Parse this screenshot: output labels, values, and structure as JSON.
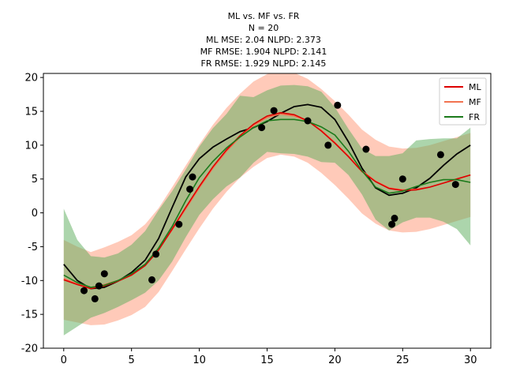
{
  "chart_data": {
    "type": "line",
    "title_lines": [
      "ML vs. MF vs. FR",
      "N = 20",
      "ML  MSE: 2.04  NLPD: 2.373",
      "MF   RMSE: 1.904 NLPD: 2.141",
      "FR  RMSE: 1.929 NLPD: 2.145"
    ],
    "xlabel": "",
    "ylabel": "",
    "xlim": [
      -1.5,
      31.5
    ],
    "ylim": [
      -20,
      20.6
    ],
    "x_ticks": [
      0,
      5,
      10,
      15,
      20,
      25,
      30
    ],
    "y_ticks": [
      -20,
      -15,
      -10,
      -5,
      0,
      5,
      10,
      15,
      20
    ],
    "grid": false,
    "legend_position": "top-right",
    "colors": {
      "ml": "#dd0000",
      "mf": "#f27350",
      "fr": "#1b7a1b",
      "truth": "#000000",
      "ml_band": "#ff9f80",
      "fr_band": "#5aab5a",
      "points": "#000000"
    },
    "legend": [
      {
        "label": "ML",
        "color": "#dd0000"
      },
      {
        "label": "MF",
        "color": "#f27350"
      },
      {
        "label": "FR",
        "color": "#1b7a1b"
      }
    ],
    "observations": {
      "x": [
        1.5,
        2.3,
        2.6,
        3.0,
        6.5,
        6.8,
        8.5,
        9.3,
        9.5,
        14.6,
        15.5,
        18.0,
        19.5,
        20.2,
        22.3,
        24.2,
        24.4,
        25.0,
        27.8,
        28.9
      ],
      "y": [
        -11.5,
        -12.7,
        -10.8,
        -9.0,
        -9.9,
        -6.1,
        -1.7,
        3.5,
        5.3,
        12.6,
        15.1,
        13.6,
        10.0,
        15.9,
        9.4,
        -1.7,
        -0.8,
        5.0,
        8.6,
        4.2
      ]
    },
    "truth": {
      "x": [
        0,
        1,
        2,
        3,
        4,
        5,
        6,
        7,
        8,
        9,
        10,
        11,
        12,
        13,
        14,
        15,
        16,
        17,
        18,
        19,
        20,
        21,
        22,
        23,
        24,
        25,
        26,
        27,
        28,
        29,
        30
      ],
      "y": [
        -7.6,
        -10.0,
        -11.2,
        -11.0,
        -10.1,
        -8.8,
        -7.0,
        -3.8,
        0.8,
        5.3,
        8.0,
        9.7,
        10.9,
        12.0,
        12.6,
        13.5,
        14.7,
        15.7,
        16.0,
        15.6,
        13.8,
        10.5,
        6.6,
        3.7,
        2.6,
        2.9,
        3.7,
        5.1,
        7.0,
        8.7,
        10.0
      ]
    },
    "series": [
      {
        "name": "ML",
        "x": [
          0,
          1,
          2,
          3,
          4,
          5,
          6,
          7,
          8,
          9,
          10,
          11,
          12,
          13,
          14,
          15,
          16,
          17,
          18,
          19,
          20,
          21,
          22,
          23,
          24,
          25,
          26,
          27,
          28,
          29,
          30
        ],
        "y": [
          -9.9,
          -10.6,
          -11.2,
          -10.8,
          -10.1,
          -9.2,
          -7.8,
          -5.5,
          -2.4,
          0.8,
          3.9,
          6.8,
          9.3,
          11.4,
          13.1,
          14.3,
          14.8,
          14.5,
          13.6,
          12.1,
          10.3,
          8.3,
          6.1,
          4.6,
          3.6,
          3.3,
          3.4,
          3.8,
          4.4,
          5.0,
          5.6
        ],
        "lower": [
          -15.8,
          -16.2,
          -16.6,
          -16.5,
          -15.9,
          -15.1,
          -13.9,
          -11.7,
          -8.6,
          -5.4,
          -2.3,
          0.6,
          3.1,
          5.2,
          6.8,
          8.1,
          8.6,
          8.3,
          7.4,
          5.9,
          4.1,
          2.1,
          -0.1,
          -1.6,
          -2.6,
          -2.9,
          -2.8,
          -2.4,
          -1.8,
          -1.2,
          -0.6
        ],
        "upper": [
          -4.0,
          -5.0,
          -5.8,
          -5.1,
          -4.3,
          -3.3,
          -1.7,
          0.7,
          3.8,
          7.0,
          10.1,
          13.0,
          15.5,
          17.6,
          19.4,
          20.5,
          21.0,
          20.7,
          19.8,
          18.3,
          16.5,
          14.5,
          12.3,
          10.8,
          9.8,
          9.5,
          9.6,
          10.0,
          10.6,
          11.2,
          11.8
        ]
      },
      {
        "name": "MF",
        "x": [
          0,
          1,
          2,
          3,
          4,
          5,
          6,
          7,
          8,
          9,
          10,
          11,
          12,
          13,
          14,
          15,
          16,
          17,
          18,
          19,
          20,
          21,
          22,
          23,
          24,
          25,
          26,
          27,
          28,
          29,
          30
        ],
        "y": [
          -9.7,
          -10.5,
          -11.0,
          -10.6,
          -10.0,
          -9.1,
          -7.7,
          -5.4,
          -2.5,
          0.6,
          3.7,
          6.6,
          9.1,
          11.2,
          12.9,
          14.1,
          14.6,
          14.3,
          13.6,
          12.2,
          10.4,
          8.4,
          6.2,
          4.7,
          3.7,
          3.4,
          3.5,
          3.8,
          4.4,
          5.0,
          5.6
        ]
      },
      {
        "name": "FR",
        "x": [
          0,
          1,
          2,
          3,
          4,
          5,
          6,
          7,
          8,
          9,
          10,
          11,
          12,
          13,
          14,
          15,
          16,
          17,
          18,
          19,
          20,
          21,
          22,
          23,
          24,
          25,
          26,
          27,
          28,
          29,
          30
        ],
        "y": [
          -9.2,
          -10.3,
          -11.0,
          -10.7,
          -10.0,
          -9.0,
          -7.6,
          -5.2,
          -2.0,
          1.8,
          5.2,
          7.6,
          9.6,
          11.2,
          12.6,
          13.6,
          13.8,
          13.8,
          13.5,
          12.7,
          11.5,
          9.1,
          6.2,
          3.8,
          2.9,
          3.2,
          3.9,
          4.5,
          4.9,
          4.9,
          4.5
        ],
        "lower": [
          -18.1,
          -16.8,
          -15.5,
          -14.8,
          -13.9,
          -12.9,
          -11.8,
          -10.0,
          -7.2,
          -3.6,
          -0.3,
          2.0,
          3.9,
          5.2,
          7.4,
          9.0,
          8.8,
          8.7,
          8.3,
          7.5,
          7.4,
          5.6,
          2.7,
          -1.0,
          -2.6,
          -1.4,
          -0.7,
          -0.7,
          -1.3,
          -2.4,
          -4.8
        ],
        "upper": [
          0.6,
          -4.0,
          -6.4,
          -6.6,
          -6.0,
          -4.7,
          -2.7,
          0.4,
          3.2,
          6.4,
          9.8,
          12.5,
          14.6,
          17.3,
          17.1,
          18.1,
          18.8,
          18.9,
          18.7,
          17.9,
          15.6,
          12.4,
          9.5,
          8.4,
          8.4,
          8.8,
          10.7,
          10.9,
          11.0,
          11.0,
          12.6
        ]
      }
    ]
  }
}
